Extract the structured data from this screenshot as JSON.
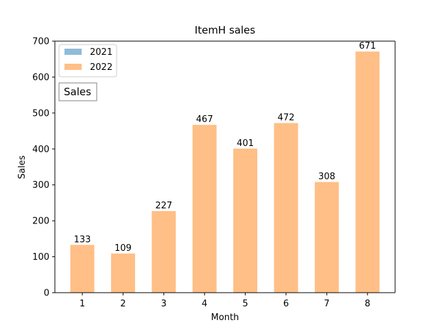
{
  "chart_data": {
    "type": "bar",
    "title": "ItemH sales",
    "xlabel": "Month",
    "ylabel": "Sales",
    "categories": [
      "1",
      "2",
      "3",
      "4",
      "5",
      "6",
      "7",
      "8"
    ],
    "ylim": [
      0,
      700
    ],
    "yticks": [
      0,
      100,
      200,
      300,
      400,
      500,
      600,
      700
    ],
    "series": [
      {
        "name": "2021",
        "color": "#8fbbd9",
        "values": [
          0,
          0,
          0,
          0,
          0,
          0,
          0,
          0
        ]
      },
      {
        "name": "2022",
        "color": "#ffbf86",
        "values": [
          133,
          109,
          227,
          467,
          401,
          472,
          308,
          671
        ]
      }
    ],
    "data_labels": [
      "133",
      "109",
      "227",
      "467",
      "401",
      "472",
      "308",
      "671"
    ],
    "legend": {
      "position": "top-left",
      "entries": [
        "2021",
        "2022"
      ]
    },
    "annotation": "Sales",
    "grid": false
  }
}
